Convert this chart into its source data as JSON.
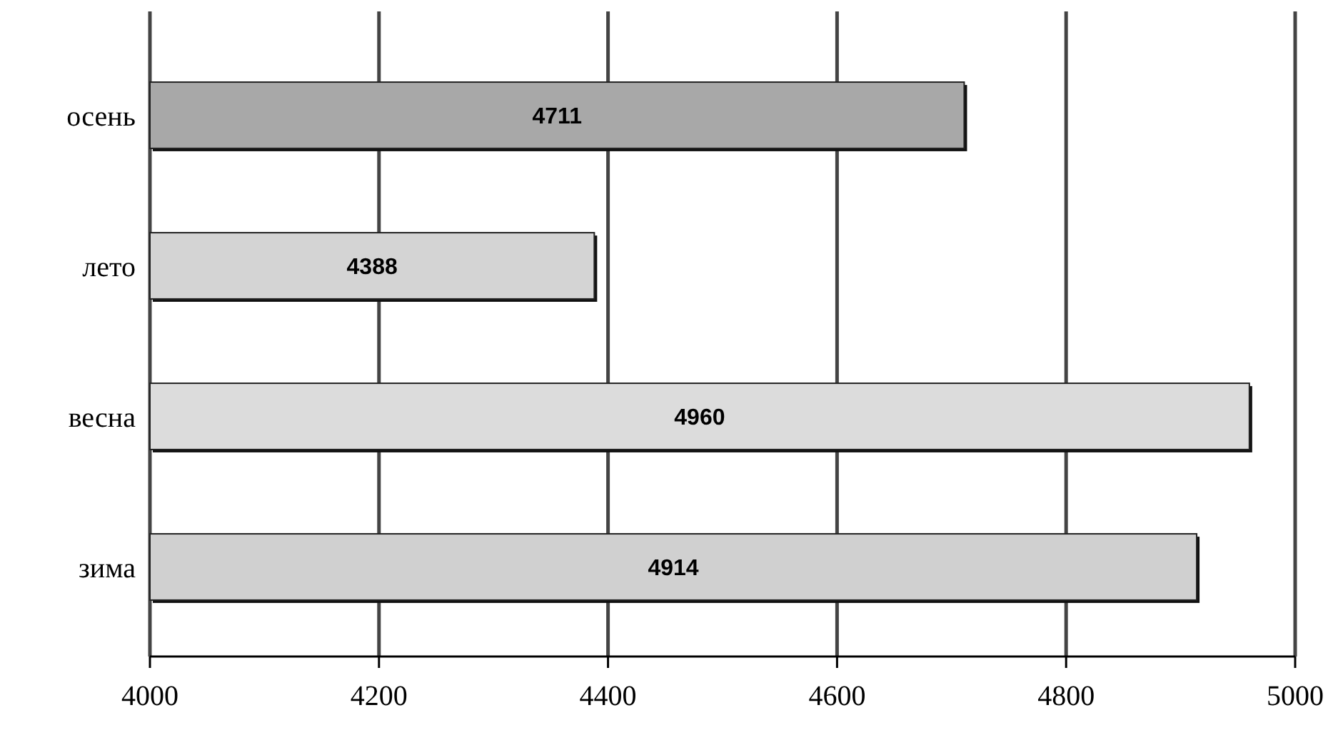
{
  "chart_data": {
    "type": "bar",
    "orientation": "horizontal",
    "categories": [
      "осень",
      "лето",
      "весна",
      "зима"
    ],
    "values": [
      4711,
      4388,
      4960,
      4914
    ],
    "colors": [
      "#a8a8a8",
      "#d4d4d4",
      "#dcdcdc",
      "#d0d0d0"
    ],
    "xlim": [
      4000,
      5000
    ],
    "xticks": [
      4000,
      4200,
      4400,
      4600,
      4800,
      5000
    ],
    "grid": "x",
    "data_labels": true
  }
}
